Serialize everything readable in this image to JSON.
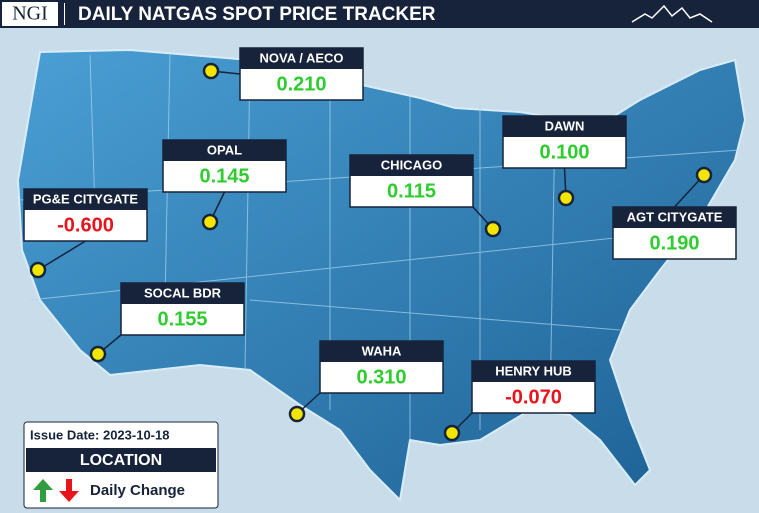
{
  "header": {
    "logo": "NGI",
    "title": "DAILY NATGAS SPOT PRICE TRACKER"
  },
  "locations": [
    {
      "name": "NOVA / AECO",
      "change": "0.210",
      "color": "#2ecc2e"
    },
    {
      "name": "OPAL",
      "change": "0.145",
      "color": "#2ecc2e"
    },
    {
      "name": "PG&E CITYGATE",
      "change": "-0.600",
      "color": "#e8141b"
    },
    {
      "name": "CHICAGO",
      "change": "0.115",
      "color": "#2ecc2e"
    },
    {
      "name": "DAWN",
      "change": "0.100",
      "color": "#2ecc2e"
    },
    {
      "name": "AGT CITYGATE",
      "change": "0.190",
      "color": "#2ecc2e"
    },
    {
      "name": "SOCAL BDR",
      "change": "0.155",
      "color": "#2ecc2e"
    },
    {
      "name": "WAHA",
      "change": "0.310",
      "color": "#2ecc2e"
    },
    {
      "name": "HENRY HUB",
      "change": "-0.070",
      "color": "#e8141b"
    }
  ],
  "legend": {
    "issue_date": "Issue Date: 2023-10-18",
    "location": "LOCATION",
    "daily_change": "Daily Change"
  }
}
